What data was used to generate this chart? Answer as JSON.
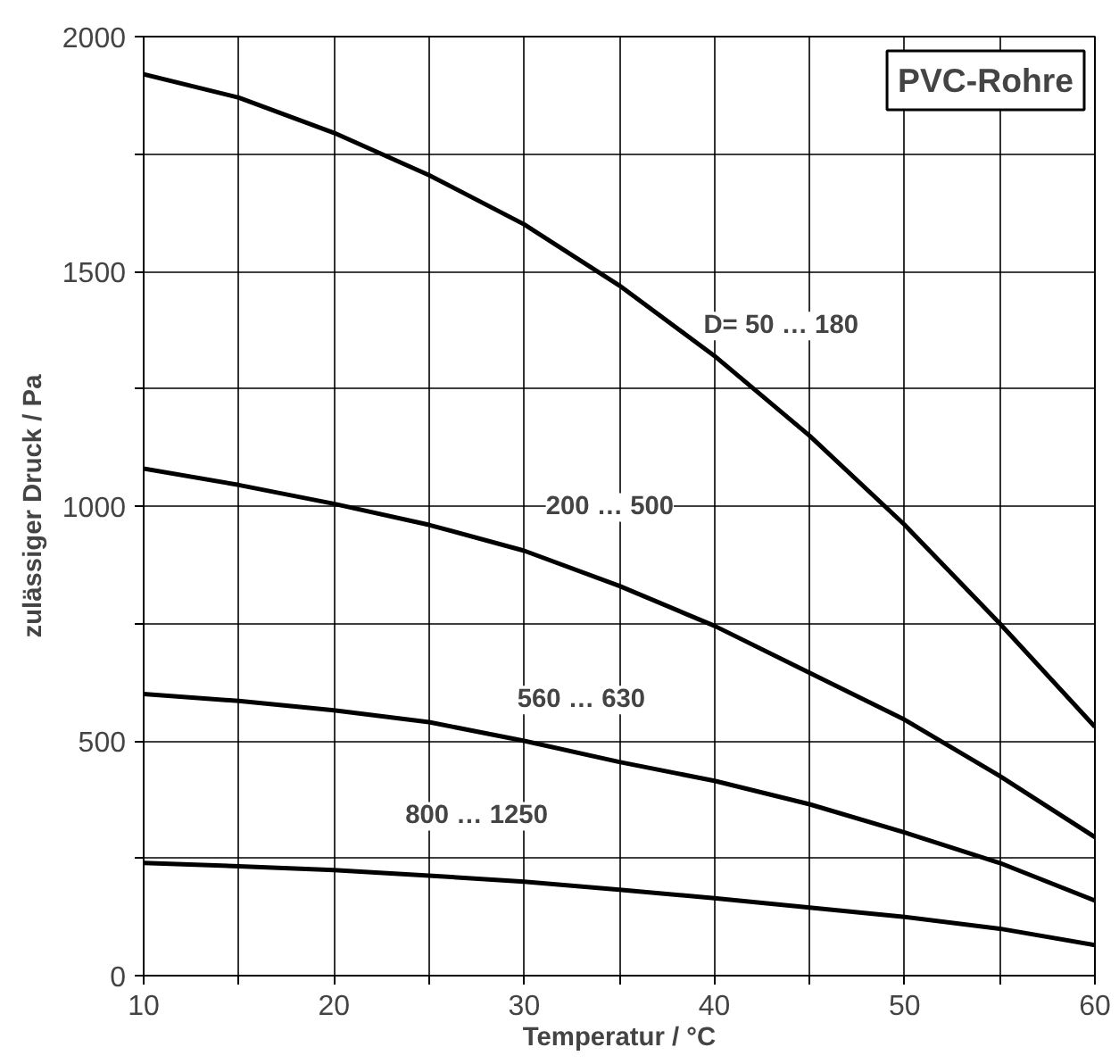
{
  "chart_data": {
    "type": "line",
    "title": "PVC-Rohre",
    "xlabel": "Temperatur / °C",
    "ylabel": "zulässiger Druck / Pa",
    "x": [
      10,
      15,
      20,
      25,
      30,
      35,
      40,
      45,
      50,
      55,
      60
    ],
    "series": [
      {
        "name": "D= 50 … 180",
        "color": "#000000",
        "values": [
          1920,
          1870,
          1795,
          1705,
          1600,
          1470,
          1320,
          1150,
          960,
          750,
          530
        ]
      },
      {
        "name": "200 … 500",
        "color": "#000000",
        "values": [
          1080,
          1045,
          1005,
          960,
          905,
          830,
          745,
          645,
          545,
          425,
          295
        ]
      },
      {
        "name": "560 … 630",
        "color": "#000000",
        "values": [
          600,
          585,
          565,
          540,
          500,
          455,
          415,
          365,
          305,
          240,
          160
        ]
      },
      {
        "name": "800 … 1250",
        "color": "#000000",
        "values": [
          240,
          233,
          225,
          213,
          200,
          183,
          165,
          145,
          125,
          100,
          65
        ]
      }
    ],
    "xlim": [
      10,
      60
    ],
    "xticks": [
      10,
      {
        "value": 15,
        "label": null
      },
      20,
      {
        "value": 25,
        "label": null
      },
      30,
      {
        "value": 35,
        "label": null
      },
      40,
      {
        "value": 45,
        "label": null
      },
      50,
      {
        "value": 55,
        "label": null
      },
      60
    ],
    "ylim": [
      0,
      2000
    ],
    "yticks": [
      0,
      {
        "value": 250,
        "label": null
      },
      500,
      {
        "value": 750,
        "label": null
      },
      1000,
      {
        "value": 1250,
        "label": null
      },
      1500,
      {
        "value": 1750,
        "label": null
      },
      2000
    ],
    "grid": true,
    "marker": "none",
    "line_style": "solid"
  }
}
